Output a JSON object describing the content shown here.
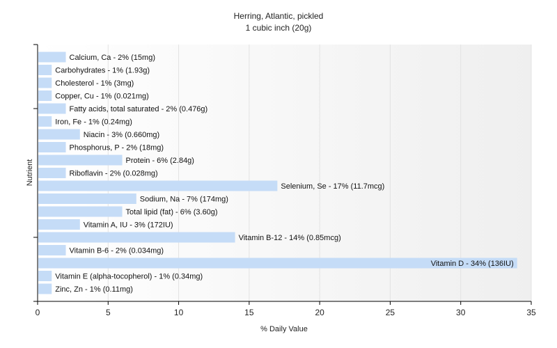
{
  "chart_data": {
    "type": "bar",
    "orientation": "horizontal",
    "title": "Herring, Atlantic, pickled",
    "subtitle": "1 cubic inch (20g)",
    "xlabel": "% Daily Value",
    "ylabel": "Nutrient",
    "xlim": [
      0,
      35
    ],
    "xticks": [
      0,
      5,
      10,
      15,
      20,
      25,
      30,
      35
    ],
    "grid": true,
    "colors": {
      "bar": "#c5dcf7",
      "grid": "#e3e3e3",
      "axis": "#000000",
      "plot_bg_start": "#ffffff",
      "plot_bg_end": "#efefef"
    },
    "bars": [
      {
        "label": "Calcium, Ca - 2% (15mg)",
        "value": 2
      },
      {
        "label": "Carbohydrates - 1% (1.93g)",
        "value": 1
      },
      {
        "label": "Cholesterol - 1% (3mg)",
        "value": 1
      },
      {
        "label": "Copper, Cu - 1% (0.021mg)",
        "value": 1
      },
      {
        "label": "Fatty acids, total saturated - 2% (0.476g)",
        "value": 2
      },
      {
        "label": "Iron, Fe - 1% (0.24mg)",
        "value": 1
      },
      {
        "label": "Niacin - 3% (0.660mg)",
        "value": 3
      },
      {
        "label": "Phosphorus, P - 2% (18mg)",
        "value": 2
      },
      {
        "label": "Protein - 6% (2.84g)",
        "value": 6
      },
      {
        "label": "Riboflavin - 2% (0.028mg)",
        "value": 2
      },
      {
        "label": "Selenium, Se - 17% (11.7mcg)",
        "value": 17
      },
      {
        "label": "Sodium, Na - 7% (174mg)",
        "value": 7
      },
      {
        "label": "Total lipid (fat) - 6% (3.60g)",
        "value": 6
      },
      {
        "label": "Vitamin A, IU - 3% (172IU)",
        "value": 3
      },
      {
        "label": "Vitamin B-12 - 14% (0.85mcg)",
        "value": 14
      },
      {
        "label": "Vitamin B-6 - 2% (0.034mg)",
        "value": 2
      },
      {
        "label": "Vitamin D - 34% (136IU)",
        "value": 34
      },
      {
        "label": "Vitamin E (alpha-tocopherol) - 1% (0.34mg)",
        "value": 1
      },
      {
        "label": "Zinc, Zn - 1% (0.11mg)",
        "value": 1
      }
    ]
  }
}
